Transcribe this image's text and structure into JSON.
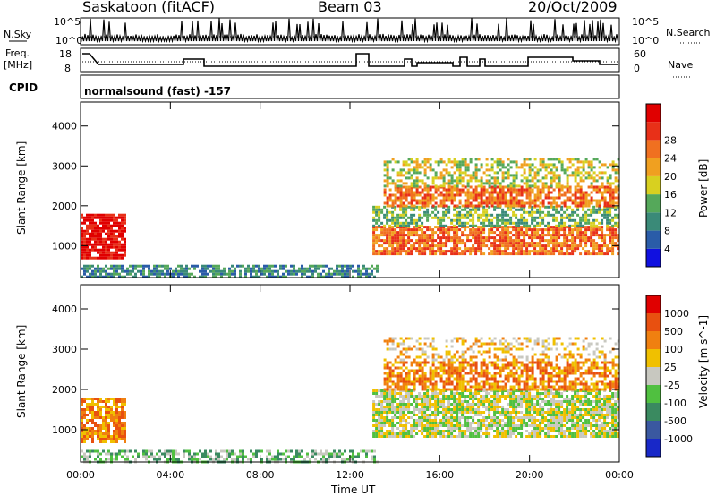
{
  "header": {
    "station": "Saskatoon (fitACF)",
    "beam": "Beam 03",
    "date": "20/Oct/2009"
  },
  "strip_labels": {
    "nsky": "N.Sky",
    "nsky_ticks": [
      "10^5",
      "10^0"
    ],
    "nsearch": "N.Search",
    "nsearch_ticks": [
      "10^5",
      "10^0"
    ],
    "freq_line1": "Freq.",
    "freq_line2": "[MHz]",
    "freq_ticks": [
      "18",
      "8"
    ],
    "nave": "Nave",
    "nave_ticks": [
      "60",
      "0"
    ],
    "cpid": "CPID",
    "cpid_value": "normalsound (fast) -157"
  },
  "chart_data": [
    {
      "type": "heatmap",
      "name": "power-panel",
      "ylabel": "Slant Range [km]",
      "xlabel": "Time UT",
      "xlim_hours": [
        0,
        24
      ],
      "ylim_km": [
        200,
        4600
      ],
      "x_tick_labels": [
        "00:00",
        "04:00",
        "08:00",
        "12:00",
        "16:00",
        "20:00",
        "00:00"
      ],
      "y_tick_labels": [
        "1000",
        "2000",
        "3000",
        "4000"
      ],
      "colorbar": {
        "label": "Power [dB]",
        "tick_labels": [
          "4",
          "8",
          "12",
          "16",
          "20",
          "24",
          "28"
        ],
        "colors": [
          "#1010e0",
          "#2a5ca8",
          "#3a8a78",
          "#55a85a",
          "#d8d020",
          "#f0a020",
          "#f07020",
          "#e83018",
          "#e00000"
        ]
      },
      "regions": [
        {
          "t0": 0.0,
          "t1": 2.0,
          "r0": 700,
          "r1": 1800,
          "level": 8,
          "density": 0.85
        },
        {
          "t0": 0.0,
          "t1": 13.2,
          "r0": 200,
          "r1": 520,
          "level": 2,
          "density": 0.7
        },
        {
          "t0": 13.0,
          "t1": 24.0,
          "r0": 800,
          "r1": 1500,
          "level": 6,
          "density": 0.8
        },
        {
          "t0": 13.0,
          "t1": 24.0,
          "r0": 1500,
          "r1": 2000,
          "level": 3,
          "density": 0.6
        },
        {
          "t0": 13.5,
          "t1": 24.0,
          "r0": 2000,
          "r1": 2500,
          "level": 6,
          "density": 0.75
        },
        {
          "t0": 13.5,
          "t1": 24.0,
          "r0": 2500,
          "r1": 3200,
          "level": 4,
          "density": 0.5
        }
      ]
    },
    {
      "type": "heatmap",
      "name": "velocity-panel",
      "ylabel": "Slant Range [km]",
      "xlabel": "Time UT",
      "xlim_hours": [
        0,
        24
      ],
      "ylim_km": [
        200,
        4600
      ],
      "x_tick_labels": [
        "00:00",
        "04:00",
        "08:00",
        "12:00",
        "16:00",
        "20:00",
        "00:00"
      ],
      "y_tick_labels": [
        "1000",
        "2000",
        "3000",
        "4000"
      ],
      "colorbar": {
        "label": "Velocity [m s^-1]",
        "tick_labels": [
          "1000",
          "500",
          "100",
          "25",
          "-25",
          "-100",
          "-500",
          "-1000"
        ],
        "colors": [
          "#1828c8",
          "#3a58a0",
          "#3a8a60",
          "#50c040",
          "#c8c8c0",
          "#f0c000",
          "#f08010",
          "#e85010",
          "#e00000"
        ]
      },
      "regions": [
        {
          "t0": 0.0,
          "t1": 2.0,
          "r0": 700,
          "r1": 1800,
          "level": 6,
          "density": 0.8
        },
        {
          "t0": 0.0,
          "t1": 13.2,
          "r0": 200,
          "r1": 500,
          "level": 3,
          "density": 0.55
        },
        {
          "t0": 13.0,
          "t1": 24.0,
          "r0": 800,
          "r1": 2000,
          "level": 4,
          "density": 0.8
        },
        {
          "t0": 13.5,
          "t1": 24.0,
          "r0": 2000,
          "r1": 2700,
          "level": 6,
          "density": 0.7
        },
        {
          "t0": 13.5,
          "t1": 24.0,
          "r0": 2700,
          "r1": 3300,
          "level": 5,
          "density": 0.35
        }
      ]
    }
  ]
}
